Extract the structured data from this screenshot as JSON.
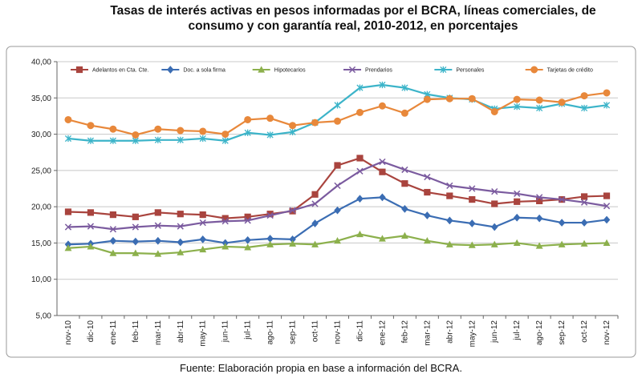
{
  "chart_data": {
    "type": "line",
    "title": "Tasas de interés activas en pesos informadas por el BCRA, líneas comerciales, de consumo y con garantía real, 2010-2012, en porcentajes",
    "source": "Fuente: Elaboración propia en base a información del BCRA.",
    "categories": [
      "nov-10",
      "dic-10",
      "ene-11",
      "feb-11",
      "mar-11",
      "abr-11",
      "may-11",
      "jun-11",
      "jul-11",
      "ago-11",
      "sep-11",
      "oct-11",
      "nov-11",
      "dic-11",
      "ene-12",
      "feb-12",
      "mar-12",
      "abr-12",
      "may-12",
      "jun-12",
      "jul-12",
      "ago-12",
      "sep-12",
      "oct-12",
      "nov-12"
    ],
    "ylim": [
      5,
      40
    ],
    "yticks": [
      {
        "value": 5,
        "label": "5,00"
      },
      {
        "value": 10,
        "label": "10,00"
      },
      {
        "value": 15,
        "label": "15,00"
      },
      {
        "value": 20,
        "label": "20,00"
      },
      {
        "value": 25,
        "label": "25,00"
      },
      {
        "value": 30,
        "label": "30,00"
      },
      {
        "value": 35,
        "label": "35,00"
      },
      {
        "value": 40,
        "label": "40,00"
      }
    ],
    "grid": true,
    "legend": "top",
    "series": [
      {
        "name": "Adelantos en Cta. Cte.",
        "color": "#a9443e",
        "marker": "square",
        "values": [
          19.3,
          19.2,
          18.9,
          18.6,
          19.2,
          19.0,
          18.9,
          18.4,
          18.6,
          19.0,
          19.4,
          21.7,
          25.7,
          26.7,
          24.8,
          23.2,
          22.0,
          21.5,
          21.0,
          20.4,
          20.7,
          20.8,
          21.0,
          21.4,
          21.5
        ]
      },
      {
        "name": "Doc. a sola firma",
        "color": "#3b6db3",
        "marker": "diamond",
        "values": [
          14.8,
          14.9,
          15.3,
          15.2,
          15.3,
          15.1,
          15.5,
          15.0,
          15.4,
          15.6,
          15.5,
          17.7,
          19.5,
          21.1,
          21.3,
          19.7,
          18.8,
          18.1,
          17.7,
          17.2,
          18.5,
          18.4,
          17.8,
          17.8,
          18.2
        ]
      },
      {
        "name": "Hipotecarios",
        "color": "#8cb04c",
        "marker": "triangle",
        "values": [
          14.3,
          14.5,
          13.6,
          13.6,
          13.5,
          13.7,
          14.1,
          14.5,
          14.4,
          14.8,
          14.9,
          14.8,
          15.3,
          16.2,
          15.6,
          16.0,
          15.3,
          14.8,
          14.7,
          14.8,
          15.0,
          14.6,
          14.8,
          14.9,
          15.0
        ]
      },
      {
        "name": "Prendarios",
        "color": "#7b5b9f",
        "marker": "x",
        "values": [
          17.2,
          17.3,
          16.9,
          17.2,
          17.4,
          17.3,
          17.8,
          18.0,
          18.1,
          18.8,
          19.5,
          20.4,
          22.9,
          24.9,
          26.2,
          25.1,
          24.1,
          22.9,
          22.5,
          22.1,
          21.8,
          21.3,
          21.0,
          20.6,
          20.1
        ]
      },
      {
        "name": "Personales",
        "color": "#3cb4c9",
        "marker": "star",
        "values": [
          29.4,
          29.1,
          29.1,
          29.1,
          29.2,
          29.2,
          29.4,
          29.1,
          30.2,
          29.9,
          30.3,
          31.6,
          34.0,
          36.4,
          36.8,
          36.4,
          35.5,
          35.0,
          34.8,
          33.5,
          33.8,
          33.6,
          34.2,
          33.6,
          34.0
        ]
      },
      {
        "name": "Tarjetas de crédito",
        "color": "#e8883b",
        "marker": "circle",
        "values": [
          32.0,
          31.2,
          30.7,
          29.9,
          30.7,
          30.5,
          30.4,
          30.0,
          32.0,
          32.2,
          31.2,
          31.6,
          31.8,
          33.0,
          33.9,
          32.9,
          34.8,
          34.9,
          34.9,
          33.1,
          34.8,
          34.7,
          34.4,
          35.3,
          35.7
        ]
      }
    ]
  }
}
